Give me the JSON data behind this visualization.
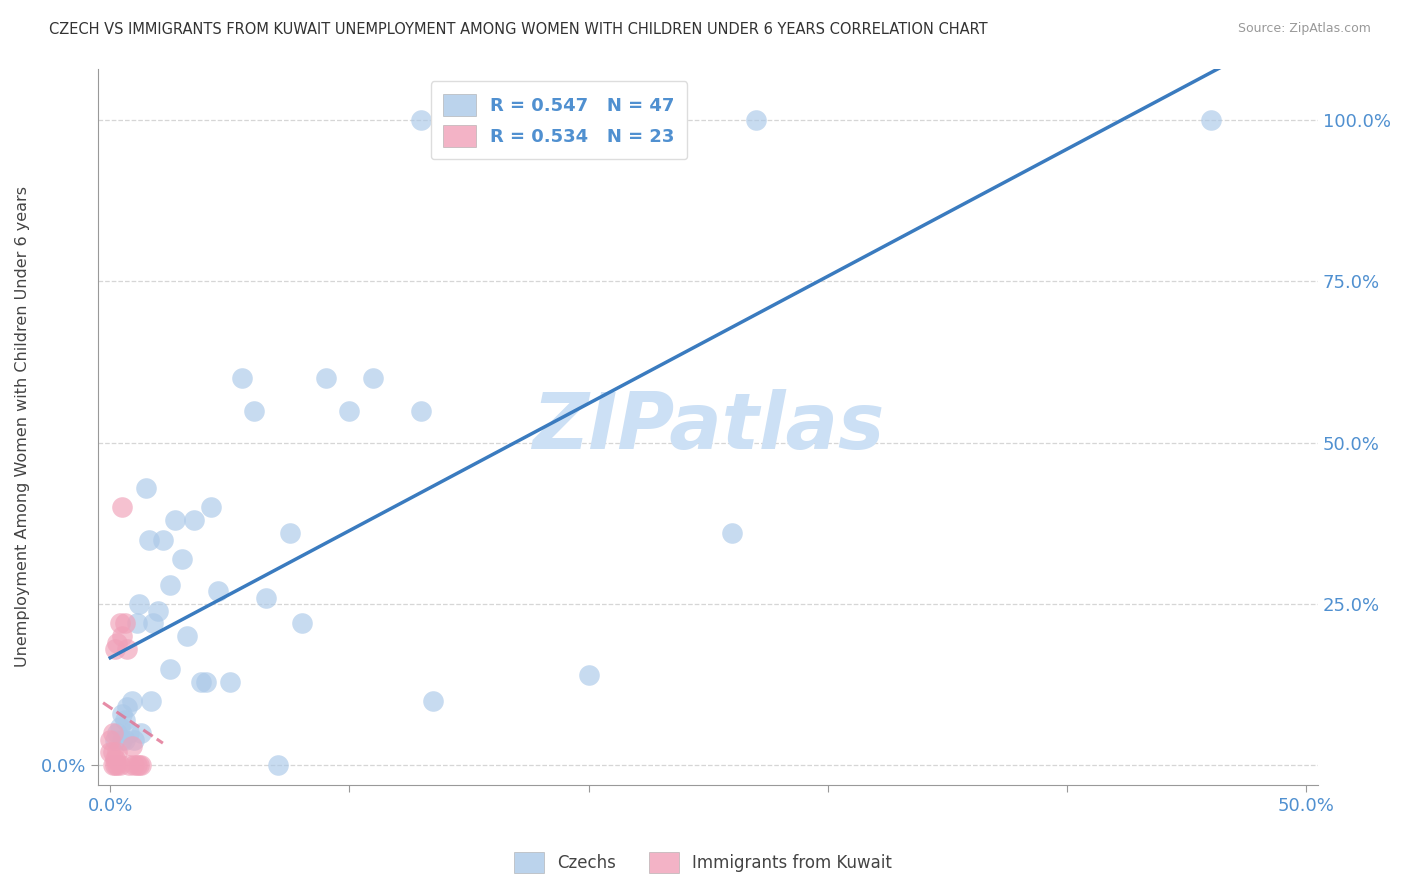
{
  "title": "CZECH VS IMMIGRANTS FROM KUWAIT UNEMPLOYMENT AMONG WOMEN WITH CHILDREN UNDER 6 YEARS CORRELATION CHART",
  "source": "Source: ZipAtlas.com",
  "ylabel": "Unemployment Among Women with Children Under 6 years",
  "legend1_label": "R = 0.547   N = 47",
  "legend2_label": "R = 0.534   N = 23",
  "blue_scatter_color": "#aac8e8",
  "pink_scatter_color": "#f0a0b8",
  "blue_line_color": "#3a7bbf",
  "pink_line_color": "#e07090",
  "tick_label_color": "#5090d0",
  "watermark": "ZIPatlas",
  "watermark_color": "#cce0f5",
  "czechs_x": [
    0.002,
    0.003,
    0.004,
    0.005,
    0.005,
    0.006,
    0.006,
    0.007,
    0.008,
    0.009,
    0.01,
    0.011,
    0.012,
    0.013,
    0.015,
    0.016,
    0.017,
    0.018,
    0.02,
    0.022,
    0.025,
    0.025,
    0.027,
    0.03,
    0.032,
    0.035,
    0.038,
    0.04,
    0.042,
    0.045,
    0.05,
    0.055,
    0.06,
    0.065,
    0.07,
    0.075,
    0.08,
    0.09,
    0.1,
    0.11,
    0.13,
    0.135,
    0.13,
    0.2,
    0.26,
    0.27,
    0.46
  ],
  "czechs_y": [
    0.04,
    0.05,
    0.06,
    0.04,
    0.08,
    0.04,
    0.07,
    0.09,
    0.05,
    0.1,
    0.04,
    0.22,
    0.25,
    0.05,
    0.43,
    0.35,
    0.1,
    0.22,
    0.24,
    0.35,
    0.28,
    0.15,
    0.38,
    0.32,
    0.2,
    0.38,
    0.13,
    0.13,
    0.4,
    0.27,
    0.13,
    0.6,
    0.55,
    0.26,
    0.0,
    0.36,
    0.22,
    0.6,
    0.55,
    0.6,
    0.55,
    0.1,
    1.0,
    0.14,
    0.36,
    1.0,
    1.0
  ],
  "kuwait_x": [
    0.0,
    0.0,
    0.001,
    0.001,
    0.001,
    0.002,
    0.002,
    0.002,
    0.003,
    0.003,
    0.003,
    0.004,
    0.004,
    0.005,
    0.005,
    0.006,
    0.007,
    0.008,
    0.009,
    0.01,
    0.011,
    0.012,
    0.013
  ],
  "kuwait_y": [
    0.02,
    0.04,
    0.0,
    0.02,
    0.05,
    0.0,
    0.01,
    0.18,
    0.0,
    0.02,
    0.19,
    0.0,
    0.22,
    0.2,
    0.4,
    0.22,
    0.18,
    0.0,
    0.03,
    0.0,
    0.0,
    0.0,
    0.0
  ],
  "xlim": [
    -0.005,
    0.505
  ],
  "ylim": [
    -0.03,
    1.08
  ],
  "x_ticks": [
    0.0,
    0.1,
    0.2,
    0.3,
    0.4,
    0.5
  ],
  "y_ticks_left": [
    0.0
  ],
  "y_ticks_right": [
    0.25,
    0.5,
    0.75,
    1.0
  ],
  "x_tick_labels": [
    "0.0%",
    "",
    "",
    "",
    "",
    "50.0%"
  ],
  "y_tick_labels_left": [
    "0.0%"
  ],
  "y_tick_labels_right": [
    "25.0%",
    "50.0%",
    "75.0%",
    "100.0%"
  ]
}
